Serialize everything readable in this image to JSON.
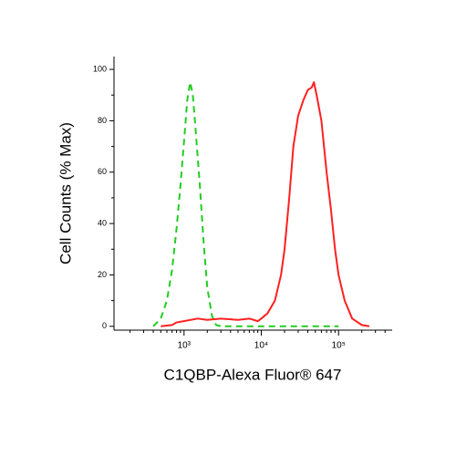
{
  "chart_data": {
    "type": "line",
    "x_label": "C1QBP-Alexa Fluor® 647",
    "y_label": "Cell Counts (% Max)",
    "xscale": "log",
    "xlim": [
      124,
      494000
    ],
    "ylim": [
      -1.5,
      105
    ],
    "xticks": [
      {
        "value": 1000,
        "label": "10³"
      },
      {
        "value": 10000,
        "label": "10⁴"
      },
      {
        "value": 100000,
        "label": "10⁵"
      }
    ],
    "xminorticks": [
      200,
      300,
      400,
      500,
      600,
      700,
      800,
      900,
      2000,
      3000,
      4000,
      5000,
      6000,
      7000,
      8000,
      9000,
      20000,
      30000,
      40000,
      50000,
      60000,
      70000,
      80000,
      90000,
      200000,
      300000,
      400000
    ],
    "yticks": [
      0,
      20,
      40,
      60,
      80,
      100
    ],
    "yminorticks": [
      10,
      30,
      50,
      70,
      90
    ],
    "series": [
      {
        "color": "#22cc22",
        "dashed": true,
        "x": [
          400,
          500,
          600,
          700,
          800,
          900,
          1000,
          1100,
          1200,
          1300,
          1400,
          1600,
          1800,
          2000,
          2300,
          2600,
          3000,
          30000,
          100000
        ],
        "values": [
          0,
          3,
          10,
          22,
          38,
          55,
          72,
          88,
          95,
          90,
          78,
          55,
          32,
          15,
          4,
          0.5,
          0,
          0,
          0
        ]
      },
      {
        "color": "#ff2020",
        "dashed": false,
        "x": [
          500,
          700,
          800,
          1000,
          1500,
          2000,
          3000,
          5000,
          7000,
          9000,
          10000,
          12000,
          15000,
          18000,
          20000,
          23000,
          26000,
          30000,
          35000,
          40000,
          45000,
          48000,
          52000,
          60000,
          70000,
          80000,
          90000,
          100000,
          120000,
          150000,
          200000,
          250000
        ],
        "values": [
          0,
          0.5,
          1.5,
          2,
          3,
          2.5,
          3,
          2.5,
          3,
          2,
          3,
          5,
          10,
          20,
          30,
          50,
          70,
          82,
          88,
          92,
          93,
          95,
          90,
          80,
          60,
          45,
          30,
          20,
          10,
          3,
          0.5,
          0
        ]
      }
    ]
  }
}
